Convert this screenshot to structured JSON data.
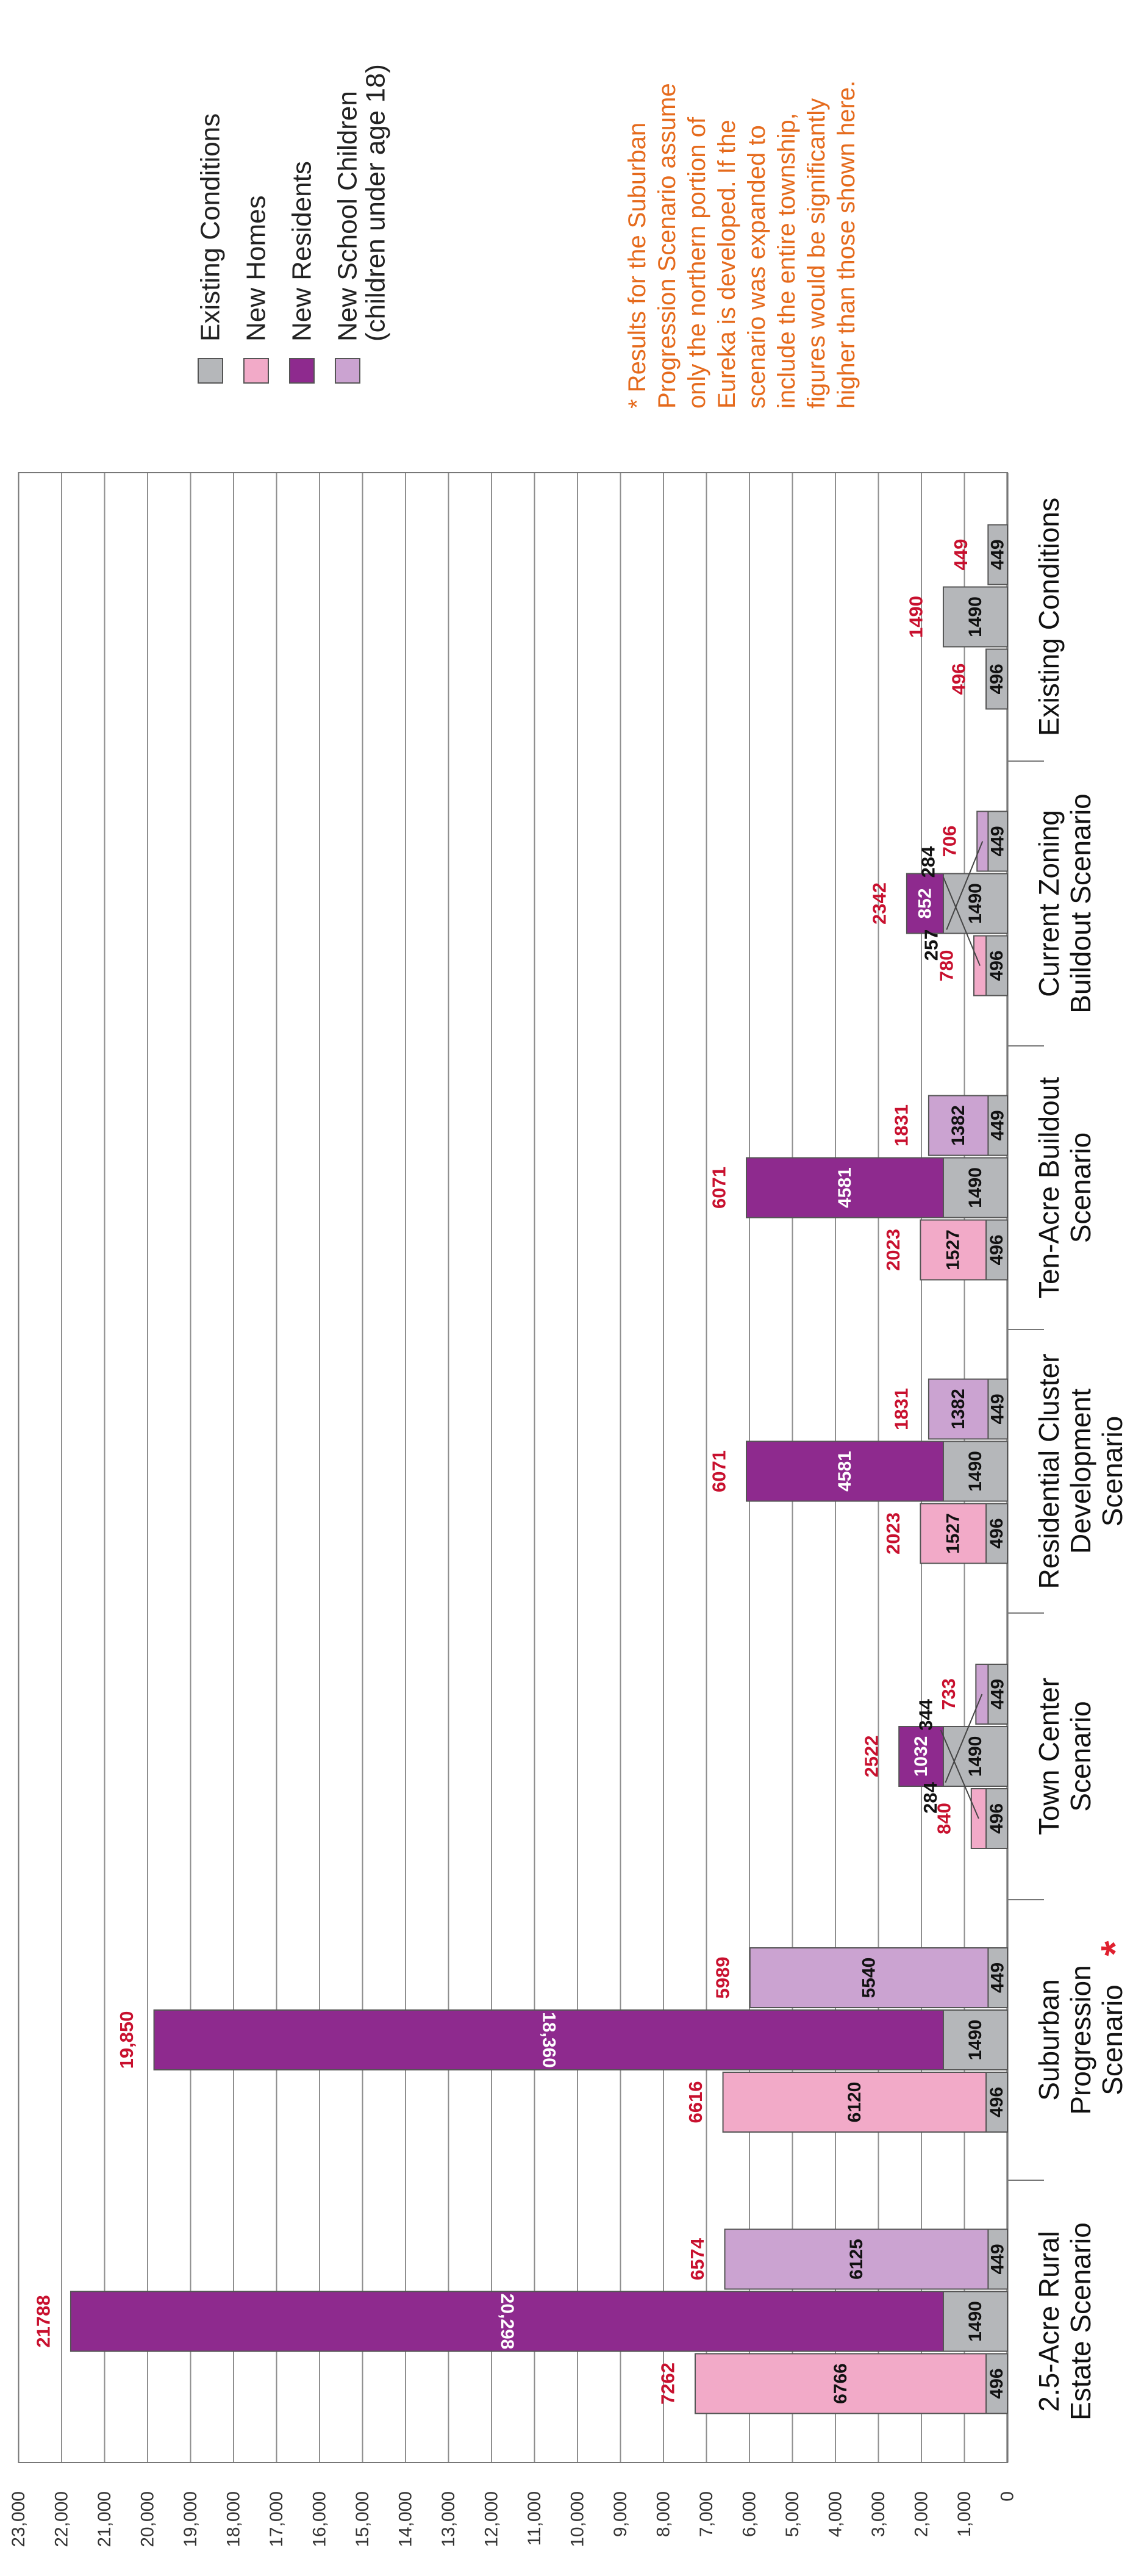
{
  "chart_data": {
    "type": "bar",
    "orientation": "horizontal-stacked-groups",
    "ylim": [
      0,
      23000
    ],
    "ticks": [
      "0",
      "1,000",
      "2,000",
      "3,000",
      "4,000",
      "5,000",
      "6,000",
      "7,000",
      "8,000",
      "9,000",
      "10,000",
      "11,000",
      "12,000",
      "13,000",
      "14,000",
      "15,000",
      "16,000",
      "17,000",
      "18,000",
      "19,000",
      "20,000",
      "21,000",
      "22,000",
      "23,000"
    ],
    "colors": {
      "existing": "#b5b7ba",
      "homes": "#f2aac8",
      "residents": "#8e2a8e",
      "children": "#cba3d1"
    },
    "series": [
      {
        "name": "Existing Conditions",
        "key": "existing"
      },
      {
        "name": "New Homes",
        "key": "homes"
      },
      {
        "name": "New Residents",
        "key": "residents"
      },
      {
        "name": "New School Children",
        "name2": "(children under age 18)",
        "key": "children"
      }
    ],
    "categories": [
      {
        "lines": [
          "Existing Conditions"
        ],
        "bars": [
          {
            "base": 496,
            "base_label": "496",
            "new": 0,
            "total_label": "496"
          },
          {
            "base": 1490,
            "base_label": "1490",
            "new": 0,
            "total_label": "1490"
          },
          {
            "base": 449,
            "base_label": "449",
            "new": 0,
            "total_label": "449"
          }
        ]
      },
      {
        "lines": [
          "Current Zoning",
          "Buildout Scenario"
        ],
        "bars": [
          {
            "base": 496,
            "base_label": "496",
            "new": 284,
            "new_label": "284",
            "new_outside": true,
            "total_label": "780"
          },
          {
            "base": 1490,
            "base_label": "1490",
            "new": 852,
            "new_label": "852",
            "total_label": "2342"
          },
          {
            "base": 449,
            "base_label": "449",
            "new": 257,
            "new_label": "257",
            "new_outside": true,
            "total_label": "706"
          }
        ]
      },
      {
        "lines": [
          "Ten-Acre Buildout",
          "Scenario"
        ],
        "bars": [
          {
            "base": 496,
            "base_label": "496",
            "new": 1527,
            "new_label": "1527",
            "total_label": "2023"
          },
          {
            "base": 1490,
            "base_label": "1490",
            "new": 4581,
            "new_label": "4581",
            "total_label": "6071"
          },
          {
            "base": 449,
            "base_label": "449",
            "new": 1382,
            "new_label": "1382",
            "total_label": "1831"
          }
        ]
      },
      {
        "lines": [
          "Residential Cluster",
          "Development",
          "Scenario"
        ],
        "bars": [
          {
            "base": 496,
            "base_label": "496",
            "new": 1527,
            "new_label": "1527",
            "total_label": "2023"
          },
          {
            "base": 1490,
            "base_label": "1490",
            "new": 4581,
            "new_label": "4581",
            "total_label": "6071"
          },
          {
            "base": 449,
            "base_label": "449",
            "new": 1382,
            "new_label": "1382",
            "total_label": "1831"
          }
        ]
      },
      {
        "lines": [
          "Town Center",
          "Scenario"
        ],
        "bars": [
          {
            "base": 496,
            "base_label": "496",
            "new": 344,
            "new_label": "344",
            "new_outside": true,
            "total_label": "840"
          },
          {
            "base": 1490,
            "base_label": "1490",
            "new": 1032,
            "new_label": "1032",
            "total_label": "2522"
          },
          {
            "base": 449,
            "base_label": "449",
            "new": 284,
            "new_label": "284",
            "new_outside": true,
            "total_label": "733"
          }
        ]
      },
      {
        "lines": [
          "Suburban",
          "Progression",
          "Scenario"
        ],
        "star": "*",
        "bars": [
          {
            "base": 496,
            "base_label": "496",
            "new": 6120,
            "new_label": "6120",
            "total_label": "6616"
          },
          {
            "base": 1490,
            "base_label": "1490",
            "new": 18360,
            "new_label": "18,360",
            "total_label": "19,850"
          },
          {
            "base": 449,
            "base_label": "449",
            "new": 5540,
            "new_label": "5540",
            "total_label": "5989"
          }
        ]
      },
      {
        "lines": [
          "2.5-Acre Rural",
          "Estate Scenario"
        ],
        "bars": [
          {
            "base": 496,
            "base_label": "496",
            "new": 6766,
            "new_label": "6766",
            "total_label": "7262"
          },
          {
            "base": 1490,
            "base_label": "1490",
            "new": 20298,
            "new_label": "20,298",
            "total_label": "21788"
          },
          {
            "base": 449,
            "base_label": "449",
            "new": 6125,
            "new_label": "6125",
            "total_label": "6574"
          }
        ]
      }
    ],
    "note_lines": [
      "* Results for the Suburban",
      "Progression Scenario assume",
      "only the northern portion of",
      "Eureka is developed. If the",
      "scenario was expanded to",
      "include the entire township,",
      "figures would be significantly",
      "higher than those shown here."
    ],
    "grid": true,
    "legend_position": "top-right"
  }
}
